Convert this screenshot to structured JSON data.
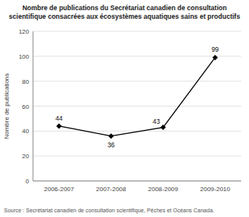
{
  "chart_data": {
    "type": "line",
    "title": "Nombre de publications du Secrétariat canadien de consultation\nscientifique consacrées aux écosystèmes aquatiques sains et productifs",
    "ylabel": "Nombre de publications",
    "source": "Source : Secrétariat canadien de consultation scientifique, Pêches et Océans Canada.",
    "categories": [
      "2006-2007",
      "2007-2008",
      "2008-2009",
      "2009-2010"
    ],
    "values": [
      44,
      36,
      43,
      99
    ],
    "ylim": [
      0,
      120
    ],
    "yticks": [
      0,
      20,
      40,
      60,
      80,
      100,
      120
    ],
    "grid": true,
    "data_labels": true,
    "color": "#000000",
    "marker": "diamond",
    "line_style": "solid"
  }
}
